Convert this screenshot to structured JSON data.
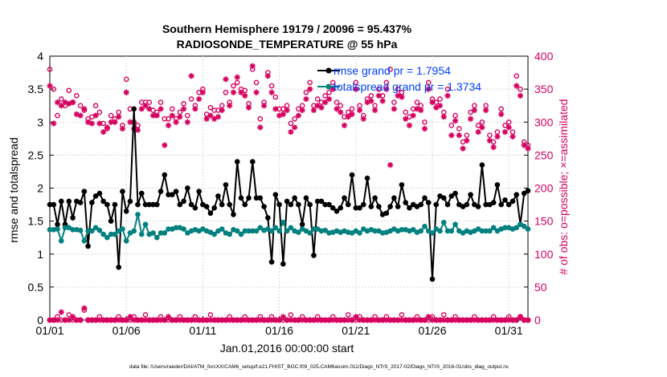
{
  "chart_data": {
    "type": "line",
    "title_line1": "Southern Hemisphere 19179 / 20096 = 95.437%",
    "title_line2": "RADIOSONDE_TEMPERATURE @ 55 hPa",
    "xlabel": "Jan.01,2016 00:00:00 start",
    "ylabel_left": "rmse and totalspread",
    "ylabel_right": "# of obs: o=possible; ×=assimilated",
    "footer": "data file: /Users/raeder/DAI/ATM_forcXX/CAM6_setup/f.e21.FHIST_BGC.f09_025.CAM6assim.011/Diags_NTrS_2017-02/Diags_NTrS_2016-01/obs_diag_output.nc",
    "xlim": [
      0,
      31.25
    ],
    "ylim_left": [
      0,
      4
    ],
    "ylim_right": [
      0,
      400
    ],
    "x_ticks": [
      {
        "x": 0,
        "label": "01/01"
      },
      {
        "x": 5,
        "label": "01/06"
      },
      {
        "x": 10,
        "label": "01/11"
      },
      {
        "x": 15,
        "label": "01/16"
      },
      {
        "x": 20,
        "label": "01/21"
      },
      {
        "x": 25,
        "label": "01/26"
      },
      {
        "x": 30,
        "label": "01/31"
      }
    ],
    "y_ticks_left": [
      "0",
      "0.5",
      "1",
      "1.5",
      "2",
      "2.5",
      "3",
      "3.5",
      "4"
    ],
    "y_ticks_right": [
      "0",
      "50",
      "100",
      "150",
      "200",
      "250",
      "300",
      "350",
      "400"
    ],
    "colors": {
      "rmse": "#000000",
      "spread": "#00807f",
      "obs": "#d6005f",
      "legend_text": "#0040ff"
    },
    "x": [
      0.0,
      0.25,
      0.5,
      0.75,
      1.0,
      1.25,
      1.5,
      1.75,
      2.0,
      2.25,
      2.5,
      2.75,
      3.0,
      3.25,
      3.5,
      3.75,
      4.0,
      4.25,
      4.5,
      4.75,
      5.0,
      5.25,
      5.5,
      5.75,
      6.0,
      6.25,
      6.5,
      6.75,
      7.0,
      7.25,
      7.5,
      7.75,
      8.0,
      8.25,
      8.5,
      8.75,
      9.0,
      9.25,
      9.5,
      9.75,
      10.0,
      10.25,
      10.5,
      10.75,
      11.0,
      11.25,
      11.5,
      11.75,
      12.0,
      12.25,
      12.5,
      12.75,
      13.0,
      13.25,
      13.5,
      13.75,
      14.0,
      14.25,
      14.5,
      14.75,
      15.0,
      15.25,
      15.5,
      15.75,
      16.0,
      16.25,
      16.5,
      16.75,
      17.0,
      17.25,
      17.5,
      17.75,
      18.0,
      18.25,
      18.5,
      18.75,
      19.0,
      19.25,
      19.5,
      19.75,
      20.0,
      20.25,
      20.5,
      20.75,
      21.0,
      21.25,
      21.5,
      21.75,
      22.0,
      22.25,
      22.5,
      22.75,
      23.0,
      23.25,
      23.5,
      23.75,
      24.0,
      24.25,
      24.5,
      24.75,
      25.0,
      25.25,
      25.5,
      25.75,
      26.0,
      26.25,
      26.5,
      26.75,
      27.0,
      27.25,
      27.5,
      27.75,
      28.0,
      28.25,
      28.5,
      28.75,
      29.0,
      29.25,
      29.5,
      29.75,
      30.0,
      30.25,
      30.5,
      30.75,
      31.0,
      31.25
    ],
    "series": [
      {
        "name": "rmse grand pr = 1.7954",
        "values": [
          1.75,
          1.75,
          1.45,
          1.8,
          1.45,
          1.8,
          1.55,
          1.8,
          1.78,
          1.95,
          1.12,
          1.78,
          1.88,
          1.92,
          1.8,
          1.75,
          1.5,
          1.75,
          0.8,
          1.95,
          1.65,
          1.8,
          3.2,
          1.75,
          1.92,
          1.75,
          1.75,
          1.75,
          1.75,
          1.95,
          2.2,
          1.9,
          1.9,
          1.95,
          1.75,
          1.8,
          2.0,
          1.75,
          1.7,
          1.95,
          1.75,
          1.72,
          1.62,
          1.7,
          1.88,
          1.75,
          2.05,
          1.75,
          1.6,
          2.4,
          1.85,
          1.75,
          1.85,
          2.4,
          1.85,
          1.85,
          1.72,
          1.55,
          0.88,
          1.9,
          1.75,
          0.85,
          1.8,
          1.75,
          1.85,
          1.75,
          1.45,
          1.85,
          1.75,
          0.98,
          1.8,
          1.8,
          1.75,
          1.75,
          1.7,
          1.65,
          1.7,
          1.85,
          1.75,
          2.2,
          1.7,
          1.7,
          1.75,
          2.15,
          1.72,
          1.85,
          1.72,
          1.6,
          1.62,
          1.72,
          1.85,
          1.72,
          2.05,
          1.78,
          1.7,
          1.75,
          1.72,
          1.75,
          1.85,
          1.78,
          0.62,
          1.75,
          1.88,
          1.85,
          1.75,
          1.88,
          1.92,
          1.75,
          1.72,
          1.75,
          1.9,
          1.75,
          1.72,
          2.35,
          1.75,
          1.75,
          1.78,
          2.05,
          1.75,
          1.82,
          1.75,
          1.8,
          1.9,
          1.45,
          1.92,
          1.96
        ]
      },
      {
        "name": "totalspread grand pr = 1.3734",
        "values": [
          1.37,
          1.37,
          1.38,
          1.2,
          1.4,
          1.4,
          1.37,
          1.37,
          1.36,
          1.2,
          1.35,
          1.35,
          1.4,
          1.36,
          1.3,
          1.25,
          1.3,
          1.3,
          1.35,
          1.38,
          1.2,
          1.32,
          1.35,
          1.6,
          1.3,
          1.45,
          1.3,
          1.32,
          1.25,
          1.32,
          1.32,
          1.38,
          1.38,
          1.4,
          1.4,
          1.38,
          1.32,
          1.35,
          1.37,
          1.35,
          1.38,
          1.35,
          1.33,
          1.3,
          1.35,
          1.38,
          1.32,
          1.3,
          1.37,
          1.35,
          1.3,
          1.35,
          1.35,
          1.35,
          1.35,
          1.4,
          1.36,
          1.38,
          1.35,
          1.4,
          1.35,
          1.48,
          1.35,
          1.4,
          1.35,
          1.33,
          1.38,
          1.35,
          1.32,
          1.38,
          1.38,
          1.35,
          1.36,
          1.32,
          1.33,
          1.35,
          1.33,
          1.35,
          1.33,
          1.32,
          1.35,
          1.32,
          1.38,
          1.35,
          1.37,
          1.35,
          1.35,
          1.32,
          1.33,
          1.35,
          1.38,
          1.35,
          1.37,
          1.37,
          1.35,
          1.37,
          1.33,
          1.35,
          1.42,
          1.35,
          1.32,
          1.38,
          1.35,
          1.48,
          1.35,
          1.35,
          1.45,
          1.35,
          1.32,
          1.35,
          1.33,
          1.35,
          1.38,
          1.35,
          1.35,
          1.35,
          1.4,
          1.35,
          1.38,
          1.4,
          1.4,
          1.38,
          1.4,
          1.45,
          1.42,
          1.38
        ]
      }
    ],
    "obs_possible": [
      380,
      350,
      310,
      335,
      325,
      348,
      330,
      340,
      325,
      318,
      305,
      308,
      325,
      315,
      298,
      290,
      310,
      305,
      315,
      295,
      365,
      320,
      300,
      295,
      330,
      330,
      330,
      318,
      315,
      330,
      305,
      305,
      320,
      305,
      315,
      328,
      310,
      335,
      325,
      345,
      350,
      312,
      322,
      318,
      318,
      325,
      345,
      330,
      355,
      360,
      350,
      348,
      328,
      380,
      360,
      305,
      330,
      375,
      355,
      338,
      320,
      320,
      325,
      298,
      305,
      320,
      325,
      345,
      360,
      325,
      335,
      330,
      340,
      345,
      360,
      330,
      325,
      308,
      315,
      320,
      360,
      325,
      310,
      335,
      340,
      325,
      350,
      340,
      360,
      380,
      330,
      350,
      345,
      315,
      308,
      320,
      330,
      325,
      300,
      360,
      335,
      330,
      335,
      315,
      350,
      295,
      310,
      290,
      270,
      280,
      315,
      325,
      295,
      300,
      325,
      280,
      270,
      285,
      320,
      295,
      300,
      285,
      370,
      350,
      270,
      265
    ],
    "obs_assimilated": [
      355,
      298,
      330,
      325,
      330,
      328,
      330,
      312,
      310,
      320,
      300,
      298,
      310,
      298,
      285,
      292,
      300,
      300,
      308,
      290,
      345,
      300,
      290,
      288,
      320,
      325,
      320,
      310,
      310,
      320,
      265,
      295,
      310,
      300,
      308,
      320,
      300,
      370,
      320,
      335,
      345,
      305,
      310,
      305,
      308,
      318,
      365,
      325,
      345,
      368,
      345,
      340,
      322,
      385,
      345,
      292,
      325,
      370,
      345,
      320,
      310,
      312,
      318,
      285,
      292,
      310,
      318,
      335,
      350,
      318,
      325,
      322,
      330,
      335,
      350,
      320,
      315,
      295,
      308,
      312,
      350,
      318,
      305,
      330,
      332,
      318,
      340,
      332,
      350,
      235,
      320,
      340,
      338,
      305,
      295,
      310,
      320,
      318,
      290,
      350,
      330,
      322,
      325,
      308,
      340,
      280,
      302,
      280,
      260,
      272,
      305,
      318,
      285,
      292,
      318,
      272,
      262,
      278,
      312,
      285,
      292,
      278,
      355,
      340,
      265,
      260
    ],
    "obs_low_possible": [
      0,
      0,
      5,
      0,
      0,
      8,
      0,
      0,
      0,
      15,
      0,
      0,
      0,
      5,
      0,
      0,
      0,
      0,
      5,
      0,
      0,
      0,
      5,
      0,
      0,
      8,
      0,
      0,
      0,
      5,
      0,
      0,
      0,
      0,
      5,
      0,
      0,
      0,
      5,
      0,
      0,
      0,
      8,
      0,
      0,
      0,
      0,
      5,
      0,
      0,
      0,
      5,
      0,
      0,
      0,
      5,
      0,
      0,
      5,
      0,
      0,
      0,
      0,
      8,
      0,
      0,
      5,
      0,
      0,
      0,
      5,
      0,
      0,
      0,
      5,
      0,
      0,
      0,
      8,
      0,
      0,
      5,
      0,
      0,
      0,
      5,
      0,
      0,
      5,
      0,
      0,
      0,
      8,
      0,
      0,
      0,
      5,
      0,
      0,
      0,
      5,
      0,
      0,
      8,
      0,
      0,
      5,
      0,
      0,
      0,
      0,
      5,
      0,
      0,
      0,
      0,
      5,
      0,
      0,
      0,
      5,
      0,
      0,
      5,
      0,
      0
    ],
    "obs_low_assimilated": [
      0,
      0,
      0,
      12,
      0,
      0,
      5,
      0,
      0,
      18,
      0,
      0,
      0,
      0,
      0,
      0,
      0,
      0,
      0,
      0,
      0,
      5,
      0,
      0,
      0,
      0,
      0,
      0,
      0,
      0,
      0,
      5,
      0,
      0,
      0,
      0,
      0,
      0,
      0,
      0,
      0,
      0,
      0,
      0,
      0,
      0,
      0,
      0,
      0,
      0,
      0,
      0,
      0,
      0,
      0,
      0,
      0,
      0,
      0,
      0,
      0,
      5,
      0,
      0,
      0,
      0,
      0,
      0,
      0,
      0,
      0,
      0,
      0,
      0,
      0,
      0,
      0,
      0,
      0,
      0,
      5,
      0,
      0,
      0,
      0,
      0,
      0,
      0,
      0,
      0,
      0,
      0,
      0,
      0,
      0,
      0,
      0,
      0,
      0,
      5,
      0,
      0,
      0,
      0,
      0,
      0,
      0,
      0,
      0,
      0,
      0,
      0,
      0,
      0,
      0,
      0,
      0,
      0,
      0,
      0,
      0,
      0,
      0,
      5,
      0,
      0
    ],
    "legend_placement": "top-right",
    "grid": true
  }
}
